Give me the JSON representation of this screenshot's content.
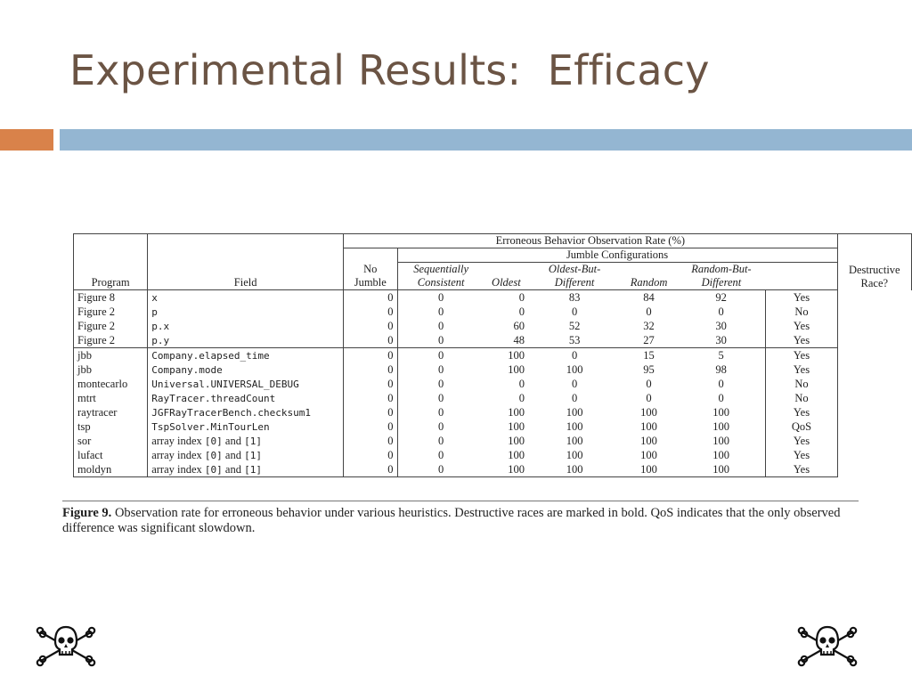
{
  "slide": {
    "title": "Experimental Results:  Efficacy"
  },
  "table": {
    "header": {
      "program": "Program",
      "field": "Field",
      "erroneous_rate": "Erroneous Behavior Observation Rate (%)",
      "jumble_configurations": "Jumble Configurations",
      "no_jumble_line1": "No",
      "no_jumble_line2": "Jumble",
      "seq_line1": "Sequentially",
      "seq_line2": "Consistent",
      "oldest": "Oldest",
      "obd_line1": "Oldest-But-",
      "obd_line2": "Different",
      "random": "Random",
      "rbd_line1": "Random-But-",
      "rbd_line2": "Different",
      "dr_line1": "Destructive",
      "dr_line2": "Race?"
    },
    "rows": [
      {
        "program": "Figure 8",
        "field": "x",
        "no_jumble": "0",
        "seq": "0",
        "oldest": "0",
        "obd": "83",
        "random": "84",
        "rbd": "92",
        "destructive": "Yes",
        "bold": true
      },
      {
        "program": "Figure 2",
        "field": "p",
        "no_jumble": "0",
        "seq": "0",
        "oldest": "0",
        "obd": "0",
        "random": "0",
        "rbd": "0",
        "destructive": "No",
        "bold": false
      },
      {
        "program": "Figure 2",
        "field": "p.x",
        "no_jumble": "0",
        "seq": "0",
        "oldest": "60",
        "obd": "52",
        "random": "32",
        "rbd": "30",
        "destructive": "Yes",
        "bold": true
      },
      {
        "program": "Figure 2",
        "field": "p.y",
        "no_jumble": "0",
        "seq": "0",
        "oldest": "48",
        "obd": "53",
        "random": "27",
        "rbd": "30",
        "destructive": "Yes",
        "bold": true
      },
      {
        "program": "jbb",
        "field": "Company.elapsed_time",
        "no_jumble": "0",
        "seq": "0",
        "oldest": "100",
        "obd": "0",
        "random": "15",
        "rbd": "5",
        "destructive": "Yes",
        "bold": true
      },
      {
        "program": "jbb",
        "field": "Company.mode",
        "no_jumble": "0",
        "seq": "0",
        "oldest": "100",
        "obd": "100",
        "random": "95",
        "rbd": "98",
        "destructive": "Yes",
        "bold": true
      },
      {
        "program": "montecarlo",
        "field": "Universal.UNIVERSAL_DEBUG",
        "no_jumble": "0",
        "seq": "0",
        "oldest": "0",
        "obd": "0",
        "random": "0",
        "rbd": "0",
        "destructive": "No",
        "bold": false
      },
      {
        "program": "mtrt",
        "field": "RayTracer.threadCount",
        "no_jumble": "0",
        "seq": "0",
        "oldest": "0",
        "obd": "0",
        "random": "0",
        "rbd": "0",
        "destructive": "No",
        "bold": false
      },
      {
        "program": "raytracer",
        "field": "JGFRayTracerBench.checksum1",
        "no_jumble": "0",
        "seq": "0",
        "oldest": "100",
        "obd": "100",
        "random": "100",
        "rbd": "100",
        "destructive": "Yes",
        "bold": true
      },
      {
        "program": "tsp",
        "field": "TspSolver.MinTourLen",
        "no_jumble": "0",
        "seq": "0",
        "oldest": "100",
        "obd": "100",
        "random": "100",
        "rbd": "100",
        "destructive": "QoS",
        "bold": false
      },
      {
        "program": "sor",
        "field_prefix": "array index ",
        "field_a": "[0]",
        "field_mid": " and ",
        "field_b": "[1]",
        "no_jumble": "0",
        "seq": "0",
        "oldest": "100",
        "obd": "100",
        "random": "100",
        "rbd": "100",
        "destructive": "Yes",
        "bold": true
      },
      {
        "program": "lufact",
        "field_prefix": "array index ",
        "field_a": "[0]",
        "field_mid": " and ",
        "field_b": "[1]",
        "no_jumble": "0",
        "seq": "0",
        "oldest": "100",
        "obd": "100",
        "random": "100",
        "rbd": "100",
        "destructive": "Yes",
        "bold": true
      },
      {
        "program": "moldyn",
        "field_prefix": "array index ",
        "field_a": "[0]",
        "field_mid": " and ",
        "field_b": "[1]",
        "no_jumble": "0",
        "seq": "0",
        "oldest": "100",
        "obd": "100",
        "random": "100",
        "rbd": "100",
        "destructive": "Yes",
        "bold": true
      }
    ]
  },
  "caption": {
    "label": "Figure 9.",
    "text": "  Observation rate for erroneous behavior under various heuristics. Destructive races are marked in bold. QoS indicates that the only observed difference was significant slowdown."
  },
  "decorations": {
    "left_icon": "skull-and-crossbones-icon",
    "right_icon": "skull-and-crossbones-icon"
  }
}
